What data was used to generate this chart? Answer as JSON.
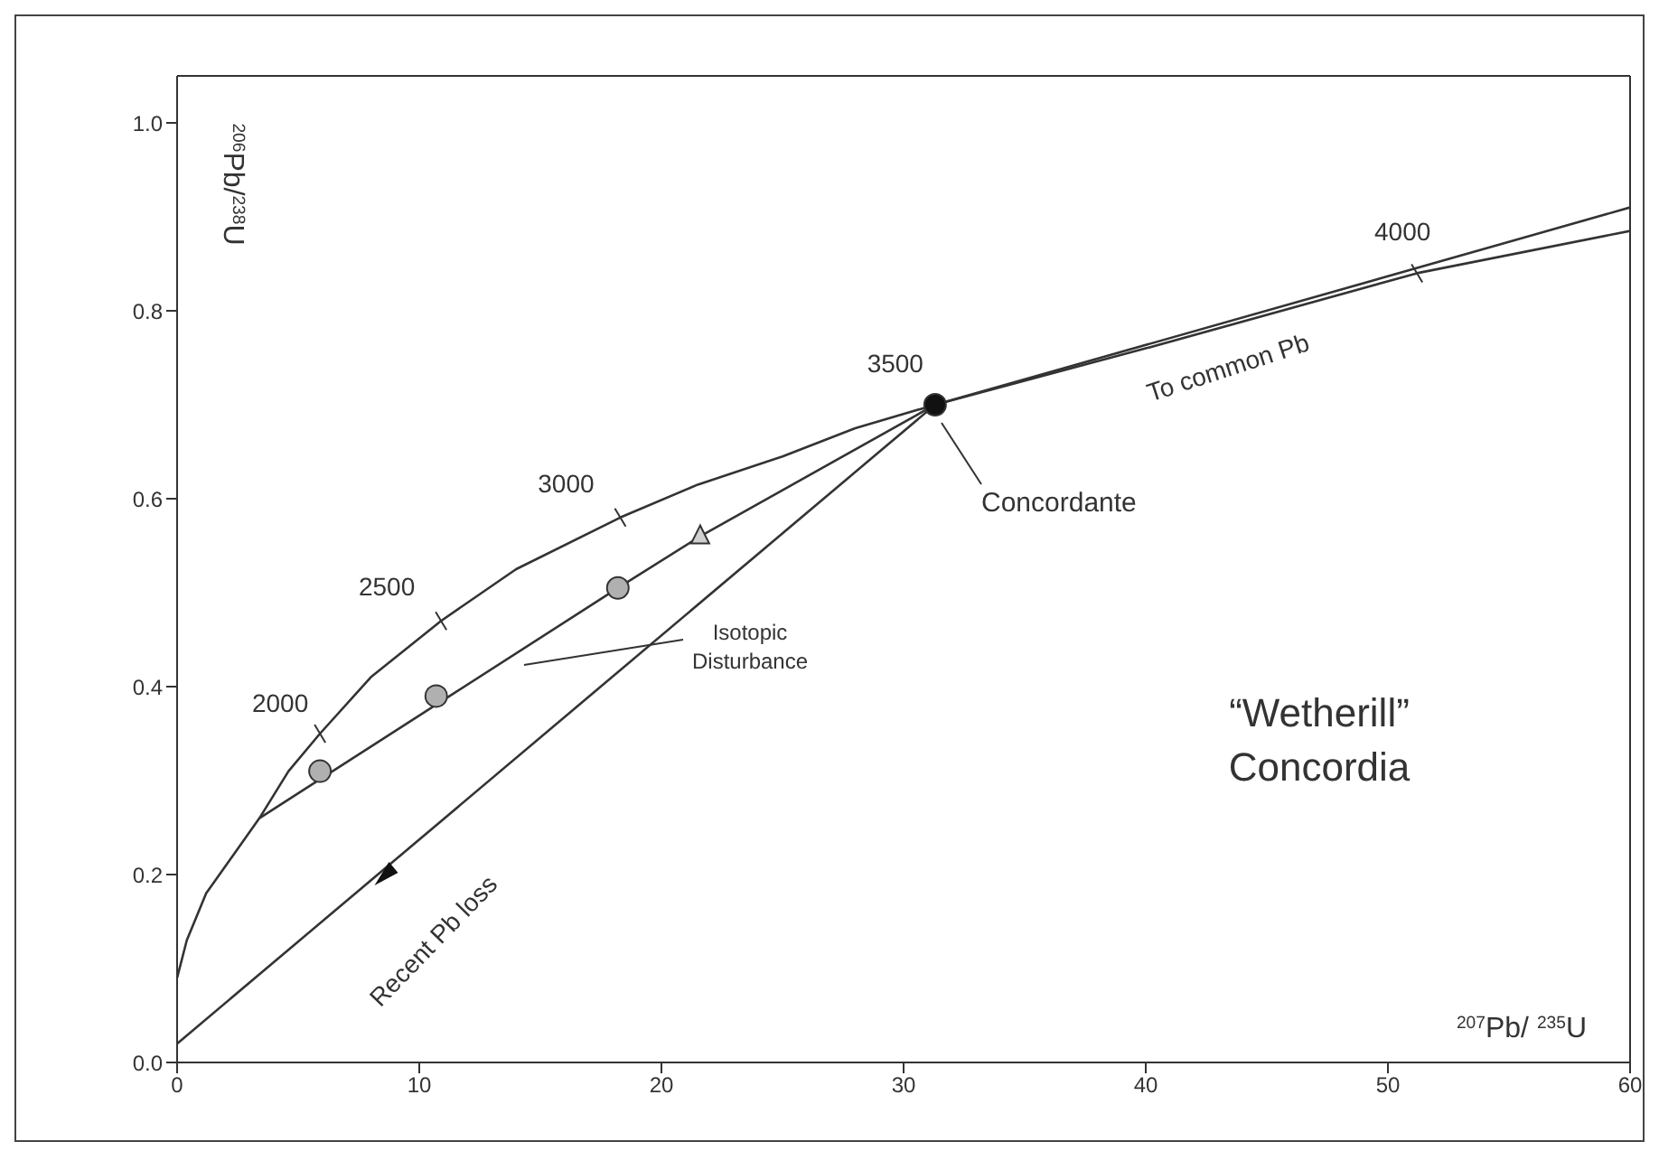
{
  "chart_data": {
    "type": "line",
    "xlabel": "$^{207}$Pb/ $^{235}$U",
    "ylabel": "$^{206}$Pb/$^{238}$U",
    "xlim": [
      0,
      60
    ],
    "xticks": [
      0,
      10,
      20,
      30,
      40,
      50,
      60
    ],
    "ylim": [
      0,
      1.05
    ],
    "yticks": [
      {
        "value": 0,
        "label": "0.0"
      },
      {
        "value": 0.2,
        "label": "0.2"
      },
      {
        "value": 0.4,
        "label": "0.4"
      },
      {
        "value": 0.6,
        "label": "0.6"
      },
      {
        "value": 0.8,
        "label": "0.8"
      },
      {
        "value": 1.0,
        "label": "1.0"
      }
    ],
    "marker": "none",
    "line_style": "solid",
    "series": [
      {
        "color": "#333333",
        "x": [
          0,
          0.4,
          1.2,
          2.3,
          3.4,
          4.6,
          5.9,
          8,
          10.9,
          14,
          18.3,
          21.5,
          25,
          28,
          31.3,
          40,
          51.2,
          60
        ],
        "values": [
          0.09,
          0.13,
          0.18,
          0.22,
          0.26,
          0.31,
          0.35,
          0.41,
          0.47,
          0.525,
          0.58,
          0.615,
          0.645,
          0.675,
          0.7,
          0.76,
          0.84,
          0.885
        ]
      },
      {
        "color": "#333333",
        "x": [
          31.3,
          60
        ],
        "values": [
          0.7,
          0.91
        ]
      },
      {
        "color": "#333333",
        "x": [
          0,
          31.3
        ],
        "values": [
          0.02,
          0.7
        ]
      },
      {
        "color": "#333333",
        "x": [
          3.4,
          18.2,
          21.6,
          31.3
        ],
        "values": [
          0.26,
          0.505,
          0.56,
          0.7
        ]
      },
      {
        "type": "scatter",
        "marker": "circle",
        "color": "#b0b0b0",
        "x": [
          5.9,
          10.7,
          18.2
        ],
        "values": [
          0.31,
          0.39,
          0.505
        ]
      },
      {
        "type": "scatter",
        "marker": "triangle",
        "color": "#d0d0d0",
        "x": [
          21.6
        ],
        "values": [
          0.56
        ]
      },
      {
        "type": "scatter",
        "marker": "circle",
        "color": "#111111",
        "x": [
          31.3
        ],
        "values": [
          0.7
        ]
      }
    ],
    "annotations": [
      {
        "text": "2000",
        "x": 5.9,
        "y": 0.35
      },
      {
        "text": "2500",
        "x": 10.9,
        "y": 0.47
      },
      {
        "text": "3000",
        "x": 18.3,
        "y": 0.58
      },
      {
        "text": "3500",
        "x": 31.3,
        "y": 0.7
      },
      {
        "text": "4000",
        "x": 51.2,
        "y": 0.84
      },
      "Concordante",
      "Isotopic Disturbance",
      {
        "text": "Recent Pb loss",
        "x": 8.6,
        "y": 0.2
      },
      {
        "text": "To common Pb",
        "x": 45,
        "y": 0.8
      },
      "“Wetherill” Concordia"
    ]
  }
}
